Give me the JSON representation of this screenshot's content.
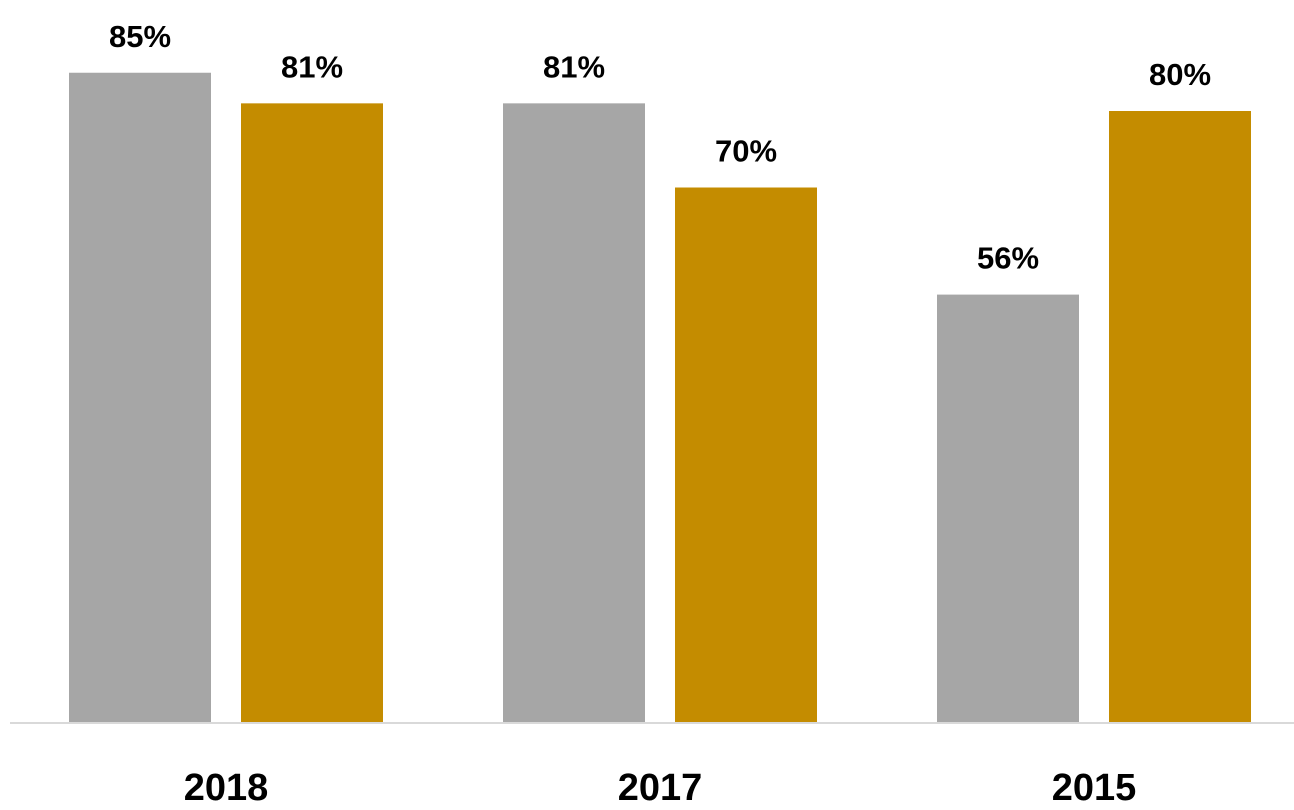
{
  "chart_data": {
    "type": "bar",
    "categories": [
      "2018",
      "2017",
      "2015"
    ],
    "series": [
      {
        "values": [
          85,
          81,
          56
        ],
        "color": "#a6a6a6"
      },
      {
        "values": [
          81,
          70,
          80
        ],
        "color": "#c48c00"
      }
    ],
    "data_labels": [
      [
        "85%",
        "81%",
        "56%"
      ],
      [
        "81%",
        "70%",
        "80%"
      ]
    ],
    "title": "",
    "xlabel": "",
    "ylabel": "",
    "ylim": [
      0,
      100
    ],
    "grid": false,
    "legend": "none",
    "value_axis_shown": false,
    "baseline_color": "#d9d9d9"
  }
}
